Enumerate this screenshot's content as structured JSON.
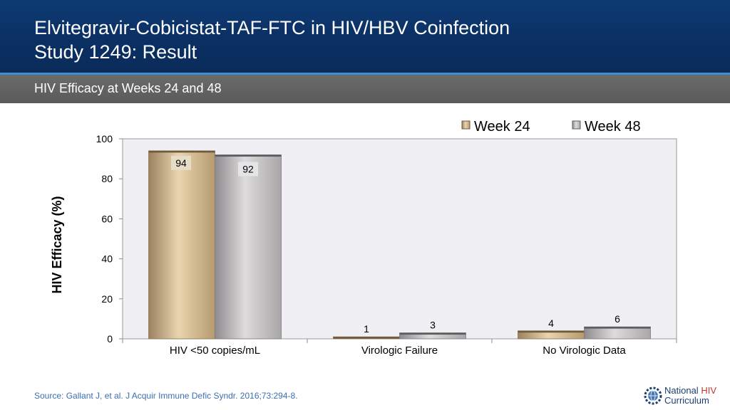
{
  "header": {
    "title_line1": "Elvitegravir-Cobicistat-TAF-FTC in HIV/HBV Coinfection",
    "title_line2": "Study 1249: Result"
  },
  "subtitle": "HIV Efficacy at Weeks 24 and 48",
  "source": "Source: Gallant J, et al. J Acquir Immune Defic Syndr. 2016;73:294-8.",
  "logo": {
    "word1": "National",
    "word2": "HIV",
    "word3": "Curriculum",
    "icon": "gear-globe-icon"
  },
  "chart_data": {
    "type": "bar",
    "categories": [
      "HIV <50 copies/mL",
      "Virologic Failure",
      "No Virologic Data"
    ],
    "series": [
      {
        "name": "Week 24",
        "values": [
          94,
          1,
          4
        ],
        "color": "#c8ad80"
      },
      {
        "name": "Week 48",
        "values": [
          92,
          3,
          6
        ],
        "color": "#b7b4b6"
      }
    ],
    "ylabel": "HIV Efficacy (%)",
    "xlabel": "",
    "ylim": [
      0,
      100
    ],
    "yticks": [
      0,
      20,
      40,
      60,
      80,
      100
    ],
    "legend": "top-right",
    "grid": false,
    "plot_background": "#f0f0f4"
  }
}
